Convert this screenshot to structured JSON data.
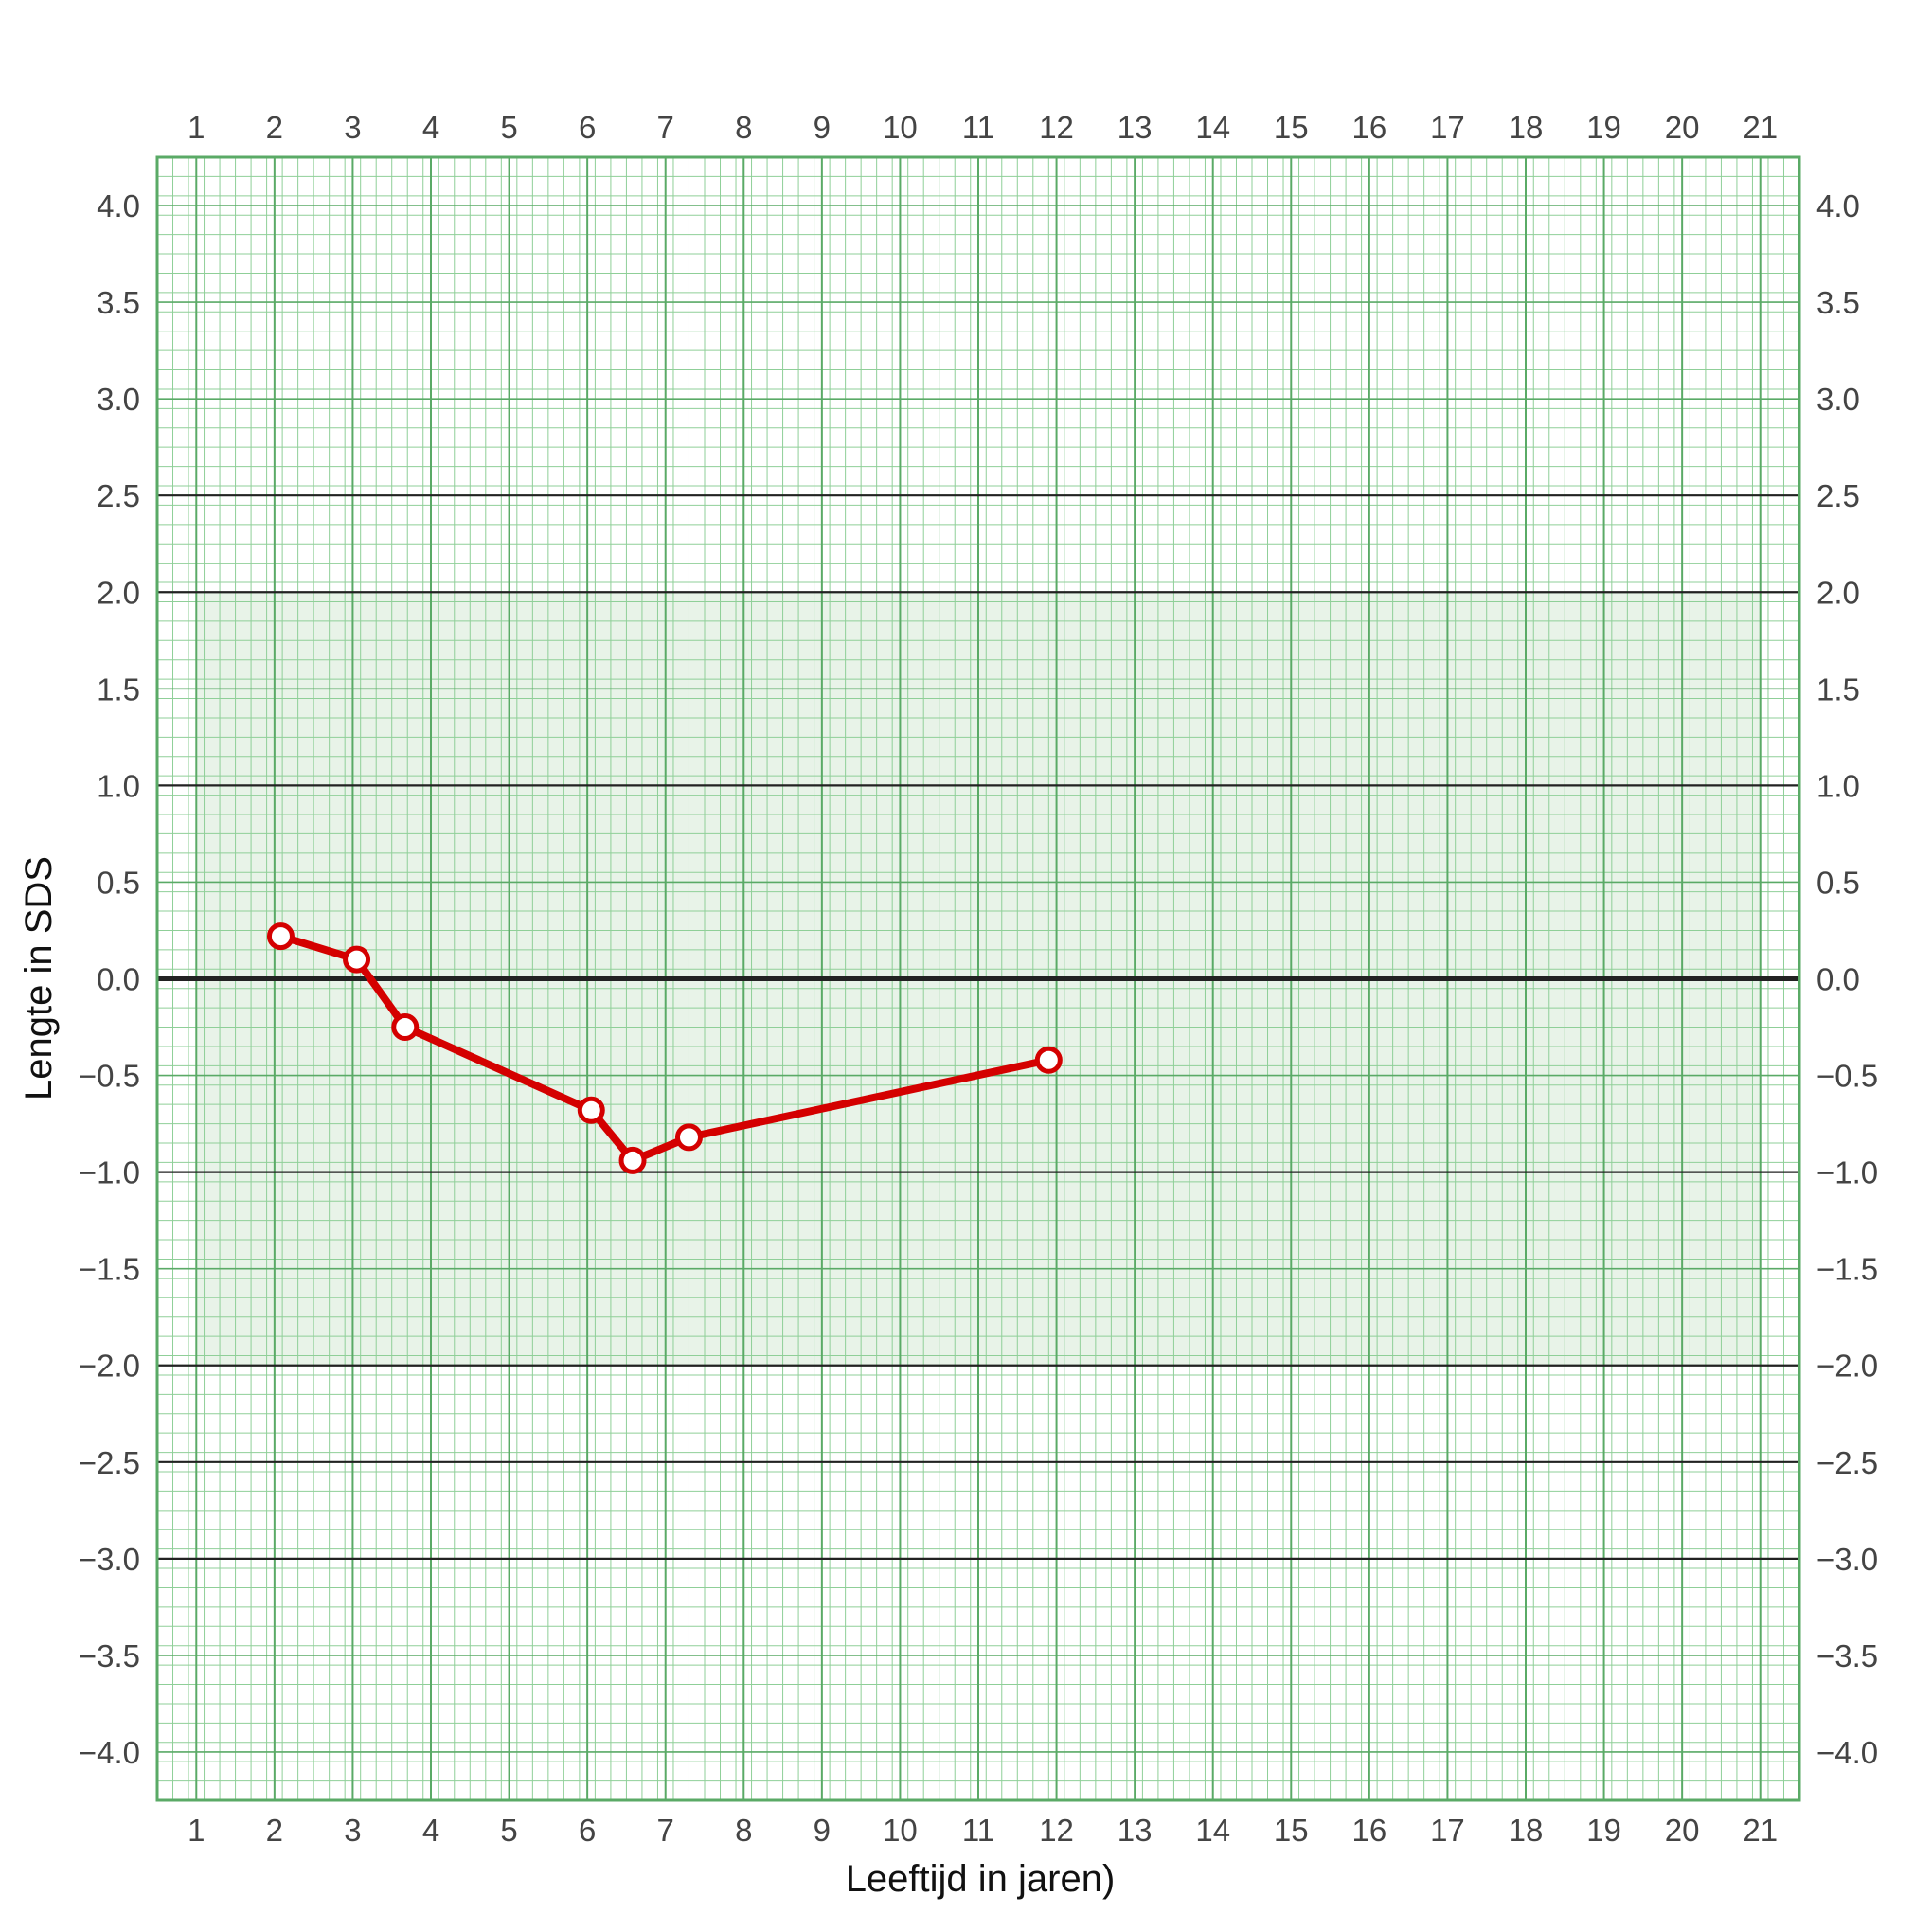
{
  "chart_data": {
    "type": "line",
    "xlabel": "Leeftijd in jaren)",
    "ylabel": "Lengte in SDS",
    "xlim": [
      0.5,
      21.5
    ],
    "ylim": [
      -4.25,
      4.25
    ],
    "x_ticks": [
      1,
      2,
      3,
      4,
      5,
      6,
      7,
      8,
      9,
      10,
      11,
      12,
      13,
      14,
      15,
      16,
      17,
      18,
      19,
      20,
      21
    ],
    "y_ticks": [
      4.0,
      3.5,
      3.0,
      2.5,
      2.0,
      1.5,
      1.0,
      0.5,
      0.0,
      -0.5,
      -1.0,
      -1.5,
      -2.0,
      -2.5,
      -3.0,
      -3.5,
      -4.0
    ],
    "y_tick_labels": [
      "4.0",
      "3.5",
      "3.0",
      "2.5",
      "2.0",
      "1.5",
      "1.0",
      "0.5",
      "0.0",
      "−0.5",
      "−1.0",
      "−1.5",
      "−2.0",
      "−2.5",
      "−3.0",
      "−3.5",
      "−4.0"
    ],
    "x_ticks_top": true,
    "y_ticks_right": true,
    "grid": true,
    "normal_range_band": {
      "from": -2.0,
      "to": 2.0,
      "x_from": 1,
      "x_to": 21,
      "color": "#e8f3e8"
    },
    "reference_lines": [
      2.5,
      2.0,
      1.0,
      0.0,
      -1.0,
      -2.0,
      -2.5,
      -3.0
    ],
    "series": [
      {
        "x": [
          2.08,
          3.05,
          3.67,
          6.05,
          6.58,
          7.3,
          11.9
        ],
        "y": [
          0.22,
          0.1,
          -0.25,
          -0.68,
          -0.94,
          -0.82,
          -0.42
        ],
        "color": "#d40000",
        "marker": "open-circle"
      }
    ],
    "colors": {
      "grid_major": "#5aaa66",
      "grid_minor": "#8fcf98",
      "frame": "#5aaa66",
      "reference_line": "#222222"
    }
  }
}
